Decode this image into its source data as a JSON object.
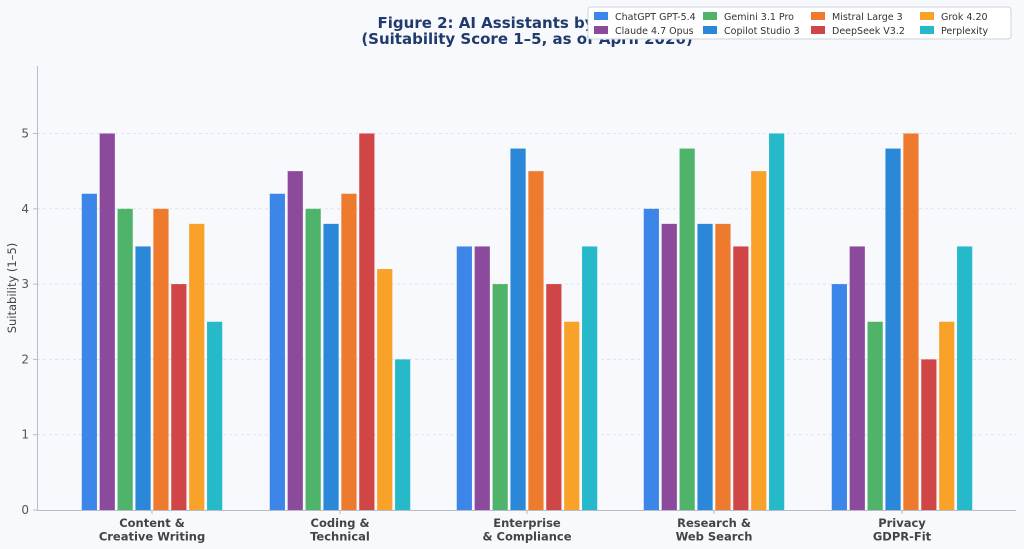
{
  "chart_data": {
    "type": "bar",
    "title_lines": [
      "Figure 2: AI Assistants by Use Case",
      "(Suitability Score 1–5, as of April 2026)"
    ],
    "ylabel": "Suitability (1–5)",
    "xlabel": "",
    "ylim": [
      0,
      5.8
    ],
    "yticks": [
      0,
      1,
      2,
      3,
      4,
      5
    ],
    "grid": true,
    "legend_position": "top-right",
    "categories": [
      [
        "Content &",
        "Creative Writing"
      ],
      [
        "Coding &",
        "Technical"
      ],
      [
        "Enterprise",
        "& Compliance"
      ],
      [
        "Research &",
        "Web Search"
      ],
      [
        "Privacy",
        "GDPR-Fit"
      ]
    ],
    "series": [
      {
        "name": "ChatGPT GPT-5.4",
        "color": "#3b86e8",
        "values": [
          4.2,
          4.2,
          3.5,
          4.0,
          3.0
        ]
      },
      {
        "name": "Claude 4.7 Opus",
        "color": "#8b4a9c",
        "values": [
          5.0,
          4.5,
          3.5,
          3.8,
          3.5
        ]
      },
      {
        "name": "Gemini 3.1 Pro",
        "color": "#4fb36a",
        "values": [
          4.0,
          4.0,
          3.0,
          4.8,
          2.5
        ]
      },
      {
        "name": "Copilot Studio 3",
        "color": "#2b88d8",
        "values": [
          3.5,
          3.8,
          4.8,
          3.8,
          4.8
        ]
      },
      {
        "name": "Mistral Large 3",
        "color": "#ee7a2e",
        "values": [
          4.0,
          4.2,
          4.5,
          3.8,
          5.0
        ]
      },
      {
        "name": "DeepSeek V3.2",
        "color": "#d04545",
        "values": [
          3.0,
          5.0,
          3.0,
          3.5,
          2.0
        ]
      },
      {
        "name": "Grok 4.20",
        "color": "#f9a22a",
        "values": [
          3.8,
          3.2,
          2.5,
          4.5,
          2.5
        ]
      },
      {
        "name": "Perplexity",
        "color": "#26b9c9",
        "values": [
          2.5,
          2.0,
          3.5,
          5.0,
          3.5
        ]
      }
    ]
  }
}
